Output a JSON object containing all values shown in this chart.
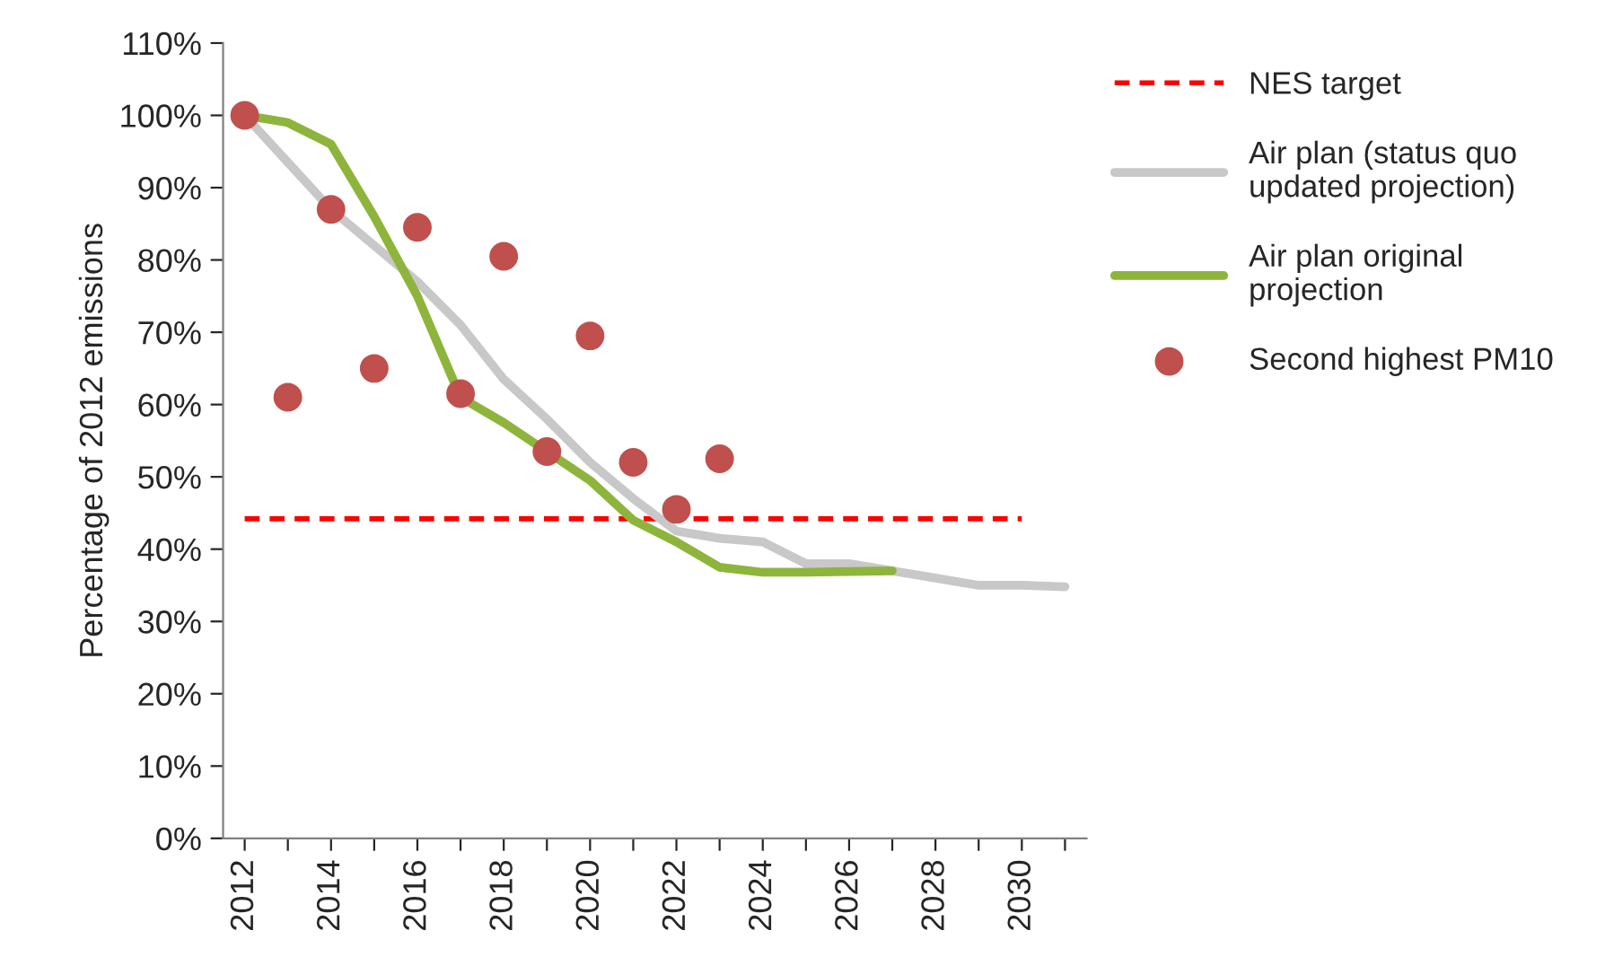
{
  "chart_data": {
    "type": "line",
    "ylabel": "Percentage of 2012 emissions",
    "categories": [
      "2012",
      null,
      "2014",
      null,
      "2016",
      null,
      "2018",
      null,
      "2020",
      null,
      "2022",
      null,
      "2024",
      null,
      "2026",
      null,
      "2028",
      null,
      "2030",
      null
    ],
    "series": [
      {
        "name": "NES target",
        "line_style": "dashed",
        "marker": "none",
        "color": "#ff0000",
        "values": [
          44.2,
          44.2,
          44.2,
          44.2,
          44.2,
          44.2,
          44.2,
          44.2,
          44.2,
          44.2,
          44.2,
          44.2,
          44.2,
          44.2,
          44.2,
          44.2,
          44.2,
          44.2,
          44.2,
          null
        ]
      },
      {
        "name": "Air plan (status quo\nupdated projection)",
        "line_style": "solid",
        "marker": "none",
        "color": "#c8c8c8",
        "values": [
          100,
          93.5,
          87,
          82,
          77,
          71,
          63.5,
          58,
          52,
          47,
          42.5,
          41.5,
          41,
          38,
          38,
          37,
          36,
          35,
          35,
          34.8
        ]
      },
      {
        "name": "Air plan original\nprojection",
        "line_style": "solid",
        "marker": "none",
        "color": "#8db53c",
        "values": [
          100,
          99,
          96,
          86,
          75,
          61,
          57.5,
          53.5,
          49.5,
          44,
          41,
          37.5,
          36.8,
          36.8,
          36.9,
          37,
          null,
          null,
          null,
          null
        ]
      },
      {
        "name": "Second highest PM10",
        "type": "scatter",
        "marker": "circle",
        "color": "#c0504d",
        "values": [
          100,
          61,
          87,
          65,
          84.5,
          61.5,
          80.5,
          53.5,
          69.5,
          52,
          45.5,
          52.5,
          null,
          null,
          null,
          null,
          null,
          null,
          null,
          null
        ]
      }
    ],
    "ylim": [
      0,
      110
    ],
    "yticks": [
      {
        "value": 0,
        "label": "0%"
      },
      {
        "value": 10,
        "label": "10%"
      },
      {
        "value": 20,
        "label": "20%"
      },
      {
        "value": 30,
        "label": "30%"
      },
      {
        "value": 40,
        "label": "40%"
      },
      {
        "value": 50,
        "label": "50%"
      },
      {
        "value": 60,
        "label": "60%"
      },
      {
        "value": 70,
        "label": "70%"
      },
      {
        "value": 80,
        "label": "80%"
      },
      {
        "value": 90,
        "label": "90%"
      },
      {
        "value": 100,
        "label": "100%"
      },
      {
        "value": 110,
        "label": "110%"
      }
    ],
    "grid": false,
    "legend": "right"
  }
}
